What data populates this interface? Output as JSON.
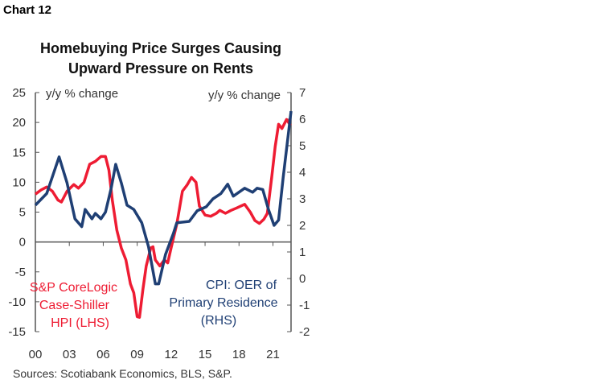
{
  "label": "Chart 12",
  "chart_data": {
    "type": "line",
    "title": "Homebuying Price Surges Causing Upward Pressure on Rents",
    "title_lines": [
      "Homebuying Price Surges Causing",
      "Upward Pressure on Rents"
    ],
    "left_axis": {
      "label": "y/y % change",
      "ylim": [
        -15,
        25
      ],
      "ticks": [
        "25",
        "20",
        "15",
        "10",
        "5",
        "0",
        "-5",
        "-10",
        "-15"
      ]
    },
    "right_axis": {
      "label": "y/y % change",
      "ylim": [
        -2,
        7
      ],
      "ticks": [
        "7",
        "6",
        "5",
        "4",
        "3",
        "2",
        "1",
        "0",
        "-1",
        "-2"
      ]
    },
    "x_ticks": [
      "00",
      "03",
      "06",
      "09",
      "12",
      "15",
      "18",
      "21"
    ],
    "xlim": [
      2000,
      2022.6
    ],
    "grid": false,
    "series": [
      {
        "name": "S&P CoreLogic Case-Shiller HPI (LHS)",
        "name_lines": [
          "S&P CoreLogic",
          "Case-Shiller",
          "HPI (LHS)"
        ],
        "axis": "left",
        "color": "#ee1c33",
        "points": [
          [
            2000,
            8
          ],
          [
            2000.5,
            8.7
          ],
          [
            2001,
            9.2
          ],
          [
            2001.5,
            8.5
          ],
          [
            2002,
            7
          ],
          [
            2002.3,
            6.7
          ],
          [
            2002.8,
            8.5
          ],
          [
            2003.4,
            9.6
          ],
          [
            2003.8,
            9
          ],
          [
            2004.3,
            10
          ],
          [
            2004.8,
            13
          ],
          [
            2005.3,
            13.5
          ],
          [
            2005.8,
            14.3
          ],
          [
            2006.2,
            14.3
          ],
          [
            2006.5,
            12
          ],
          [
            2006.8,
            7
          ],
          [
            2007.2,
            2
          ],
          [
            2007.6,
            -1
          ],
          [
            2008,
            -3
          ],
          [
            2008.4,
            -7
          ],
          [
            2008.7,
            -8.5
          ],
          [
            2009,
            -12.5
          ],
          [
            2009.2,
            -12.6
          ],
          [
            2009.5,
            -8
          ],
          [
            2009.8,
            -4
          ],
          [
            2010.2,
            -1
          ],
          [
            2010.4,
            -0.8
          ],
          [
            2010.6,
            -3
          ],
          [
            2011,
            -4
          ],
          [
            2011.4,
            -3
          ],
          [
            2011.7,
            -3.5
          ],
          [
            2012,
            -1
          ],
          [
            2012.5,
            3
          ],
          [
            2013,
            8.5
          ],
          [
            2013.4,
            9.5
          ],
          [
            2013.8,
            10.8
          ],
          [
            2014.2,
            10
          ],
          [
            2014.5,
            6
          ],
          [
            2015,
            4.5
          ],
          [
            2015.5,
            4.3
          ],
          [
            2016,
            4.8
          ],
          [
            2016.3,
            5.3
          ],
          [
            2016.8,
            4.8
          ],
          [
            2017.3,
            5.3
          ],
          [
            2017.8,
            5.7
          ],
          [
            2018.5,
            6.3
          ],
          [
            2019,
            5
          ],
          [
            2019.4,
            3.6
          ],
          [
            2019.8,
            3.1
          ],
          [
            2020.2,
            3.8
          ],
          [
            2020.5,
            4.8
          ],
          [
            2020.9,
            11
          ],
          [
            2021.2,
            16
          ],
          [
            2021.5,
            19.7
          ],
          [
            2021.8,
            19
          ],
          [
            2022.2,
            20.5
          ],
          [
            2022.55,
            19.5
          ]
        ]
      },
      {
        "name": "CPI: OER of Primary Residence (RHS)",
        "name_lines": [
          "CPI: OER of",
          "Primary Residence",
          "(RHS)"
        ],
        "axis": "right",
        "color": "#1f3f74",
        "points": [
          [
            2000,
            2.76
          ],
          [
            2001,
            3.2
          ],
          [
            2002.1,
            4.58
          ],
          [
            2002.8,
            3.6
          ],
          [
            2003.5,
            2.25
          ],
          [
            2004.1,
            1.95
          ],
          [
            2004.4,
            2.6
          ],
          [
            2005,
            2.25
          ],
          [
            2005.3,
            2.45
          ],
          [
            2005.8,
            2.25
          ],
          [
            2006.2,
            2.5
          ],
          [
            2006.7,
            3.4
          ],
          [
            2007.1,
            4.3
          ],
          [
            2007.6,
            3.6
          ],
          [
            2008.1,
            2.76
          ],
          [
            2008.7,
            2.6
          ],
          [
            2009.4,
            2.1
          ],
          [
            2010,
            1.2
          ],
          [
            2010.6,
            -0.2
          ],
          [
            2010.9,
            -0.2
          ],
          [
            2011.5,
            0.9
          ],
          [
            2012.2,
            1.7
          ],
          [
            2012.5,
            2.1
          ],
          [
            2013.6,
            2.15
          ],
          [
            2014.3,
            2.55
          ],
          [
            2015.1,
            2.7
          ],
          [
            2015.7,
            3.0
          ],
          [
            2016.4,
            3.2
          ],
          [
            2017,
            3.55
          ],
          [
            2017.5,
            3.1
          ],
          [
            2018.5,
            3.4
          ],
          [
            2019.2,
            3.25
          ],
          [
            2019.6,
            3.4
          ],
          [
            2020.1,
            3.35
          ],
          [
            2020.6,
            2.6
          ],
          [
            2021.1,
            2.0
          ],
          [
            2021.5,
            2.2
          ],
          [
            2021.9,
            3.8
          ],
          [
            2022.6,
            6.3
          ]
        ]
      }
    ]
  },
  "source": "Sources: Scotiabank Economics, BLS, S&P."
}
